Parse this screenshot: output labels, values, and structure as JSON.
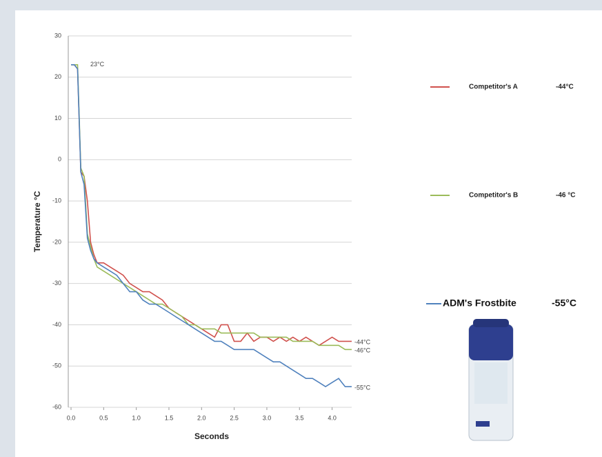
{
  "chart_data": {
    "type": "line",
    "xlabel": "Seconds",
    "ylabel": "Temperature  °C",
    "x": [
      0,
      0.05,
      0.1,
      0.15,
      0.2,
      0.25,
      0.3,
      0.35,
      0.4,
      0.5,
      0.6,
      0.7,
      0.8,
      0.9,
      1.0,
      1.1,
      1.2,
      1.3,
      1.4,
      1.5,
      1.6,
      1.7,
      1.8,
      1.9,
      2.0,
      2.1,
      2.2,
      2.3,
      2.4,
      2.5,
      2.6,
      2.7,
      2.8,
      2.9,
      3.0,
      3.1,
      3.2,
      3.3,
      3.4,
      3.5,
      3.6,
      3.7,
      3.8,
      3.9,
      4.0,
      4.1,
      4.2,
      4.3
    ],
    "series": [
      {
        "name": "Competitor's A",
        "color": "#d0504c",
        "values": [
          23,
          23,
          22,
          -3,
          -4,
          -10,
          -20,
          -23,
          -25,
          -25,
          -26,
          -27,
          -28,
          -30,
          -31,
          -32,
          -32,
          -33,
          -34,
          -36,
          -37,
          -38,
          -39,
          -40,
          -41,
          -42,
          -43,
          -40,
          -40,
          -44,
          -44,
          -42,
          -44,
          -43,
          -43,
          -44,
          -43,
          -44,
          -43,
          -44,
          -43,
          -44,
          -45,
          -44,
          -43,
          -44,
          -44,
          -44
        ]
      },
      {
        "name": "Competitor's B",
        "color": "#9bbb59",
        "values": [
          23,
          23,
          23,
          -2,
          -4,
          -18,
          -21,
          -24,
          -26,
          -27,
          -28,
          -29,
          -30,
          -31,
          -32,
          -33,
          -34,
          -35,
          -35,
          -36,
          -37,
          -38,
          -40,
          -40,
          -41,
          -41,
          -41,
          -42,
          -42,
          -42,
          -42,
          -42,
          -42,
          -43,
          -43,
          -43,
          -43,
          -43,
          -44,
          -44,
          -44,
          -44,
          -45,
          -45,
          -45,
          -45,
          -46,
          -46
        ]
      },
      {
        "name": "ADM's Frostbite",
        "color": "#4f81bd",
        "values": [
          23,
          23,
          22,
          -3,
          -6,
          -19,
          -22,
          -24,
          -25,
          -26,
          -27,
          -28,
          -30,
          -32,
          -32,
          -34,
          -35,
          -35,
          -36,
          -37,
          -38,
          -39,
          -40,
          -41,
          -42,
          -43,
          -44,
          -44,
          -45,
          -46,
          -46,
          -46,
          -46,
          -47,
          -48,
          -49,
          -49,
          -50,
          -51,
          -52,
          -53,
          -53,
          -54,
          -55,
          -54,
          -53,
          -55,
          -55
        ]
      }
    ],
    "legend_values": [
      "-44°C",
      "-46 °C",
      "-55°C"
    ],
    "annotations": [
      "23°C",
      "-44°C",
      "-46°C",
      "-55°C"
    ],
    "xlim": [
      0,
      4.3
    ],
    "ylim": [
      -60,
      30
    ],
    "xticks": [
      {
        "value": 0,
        "label": "0.0"
      },
      0.5,
      {
        "value": 1,
        "label": "1.0"
      },
      1.5,
      {
        "value": 2,
        "label": "2.0"
      },
      2.5,
      {
        "value": 3,
        "label": "3.0"
      },
      3.5,
      {
        "value": 4,
        "label": "4.0"
      }
    ],
    "yticks": [
      30,
      20,
      10,
      0,
      -10,
      -20,
      -30,
      -40,
      -50,
      -60
    ],
    "grid": true
  }
}
